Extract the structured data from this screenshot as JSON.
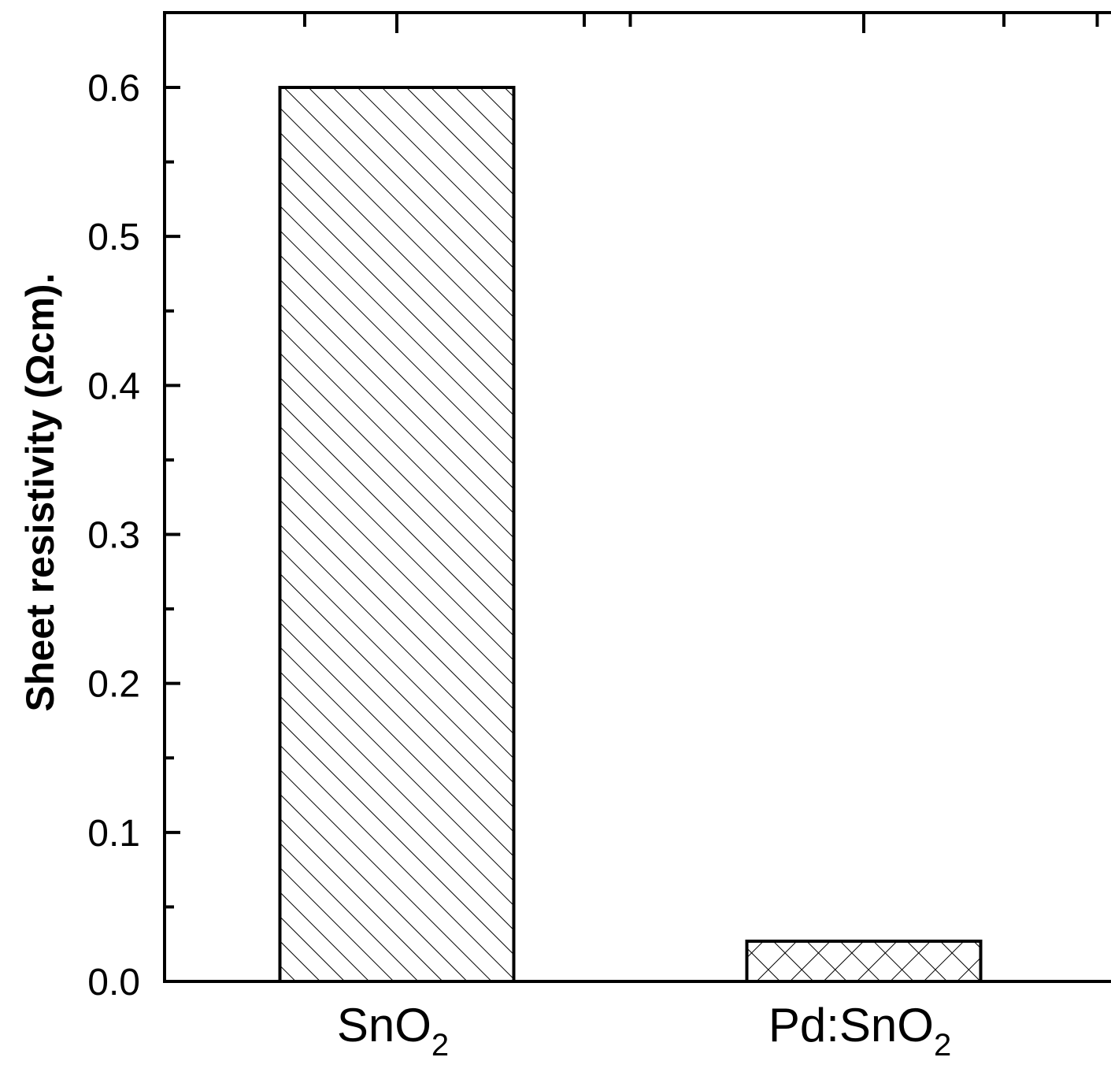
{
  "chart_data": {
    "type": "bar",
    "title": "",
    "xlabel": "",
    "ylabel": "Sheet resistivity (Ωcm).",
    "ylim": [
      0,
      0.65
    ],
    "yticks": [
      0.0,
      0.1,
      0.2,
      0.3,
      0.4,
      0.5,
      0.6
    ],
    "ytick_labels": [
      "0.0",
      "0.1",
      "0.2",
      "0.3",
      "0.4",
      "0.5",
      "0.6"
    ],
    "categories": [
      {
        "main": "SnO",
        "sub": "2"
      },
      {
        "main": "Pd:SnO",
        "sub": "2"
      }
    ],
    "values": [
      0.6,
      0.027
    ],
    "bar_fills": [
      "diagonal-hatch",
      "crosshatch"
    ],
    "grid": false,
    "legend": "none"
  },
  "colors": {
    "axis": "#000000",
    "bar_edge": "#000000",
    "bar_fill": "#ffffff",
    "background": "#ffffff"
  }
}
